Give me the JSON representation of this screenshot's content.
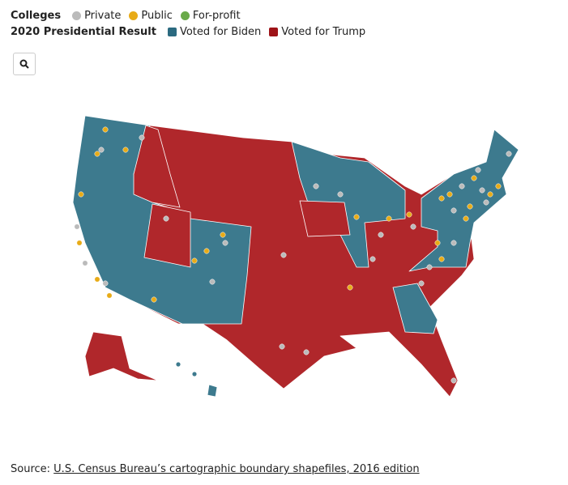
{
  "legend": {
    "colleges": {
      "title": "Colleges",
      "items": [
        "Private",
        "Public",
        "For-profit"
      ]
    },
    "result": {
      "title": "2020 Presidential Result",
      "items": [
        "Voted for Biden",
        "Voted for Trump"
      ]
    }
  },
  "source": {
    "label": "Source:",
    "link": "U.S. Census Bureau’s cartographic boundary shapefiles, 2016 edition"
  }
}
